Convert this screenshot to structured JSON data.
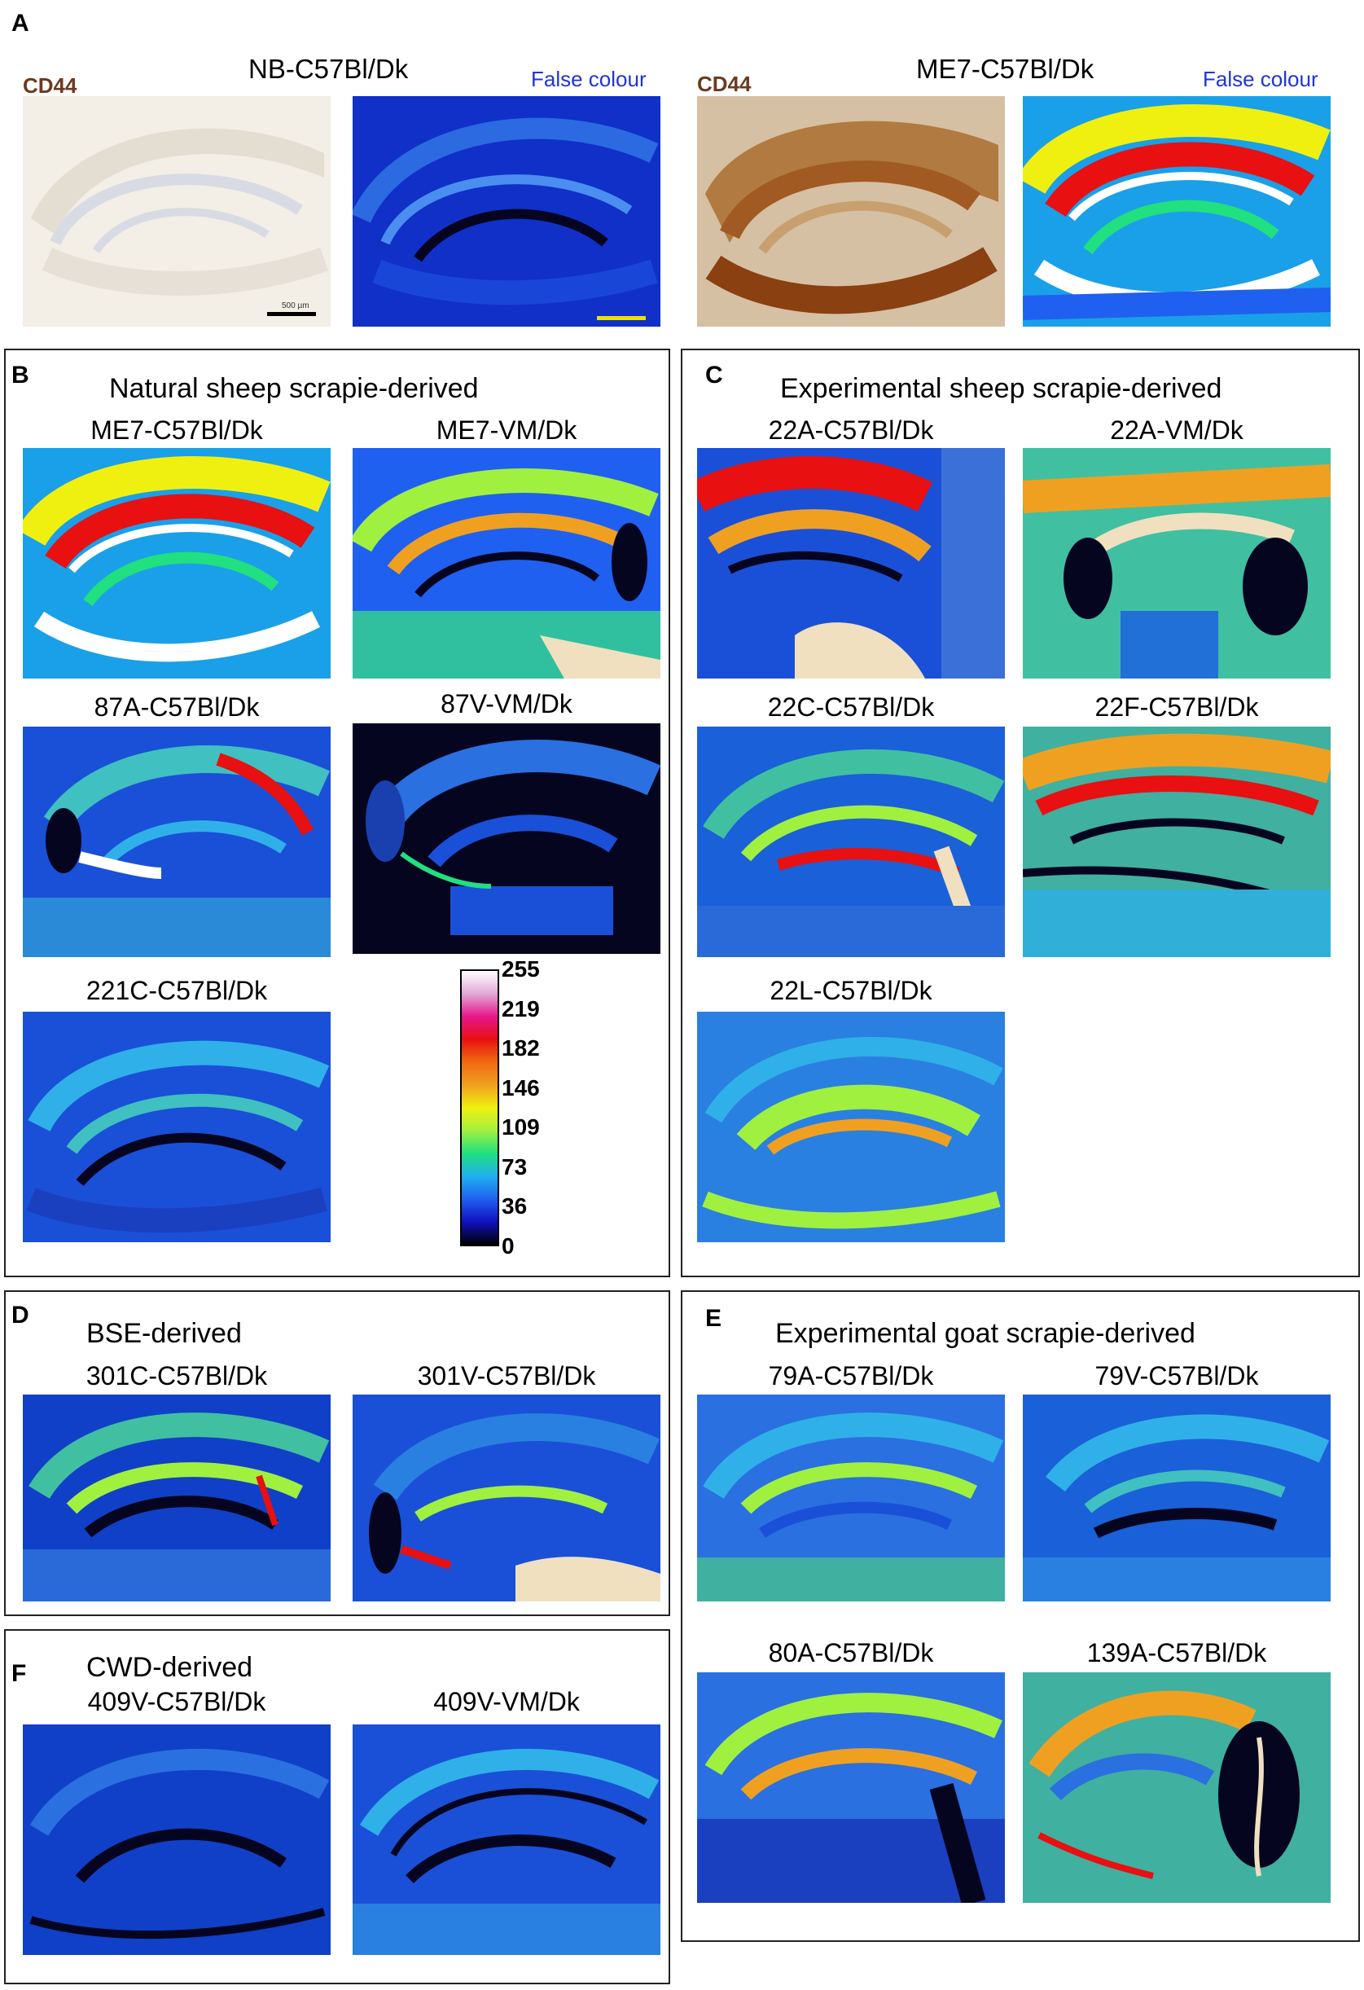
{
  "colors": {
    "cd44_label": "#6b3a1f",
    "false_colour_label": "#1f35d8",
    "scalebar_black": "#000000",
    "scalebar_yellow": "#f0e000"
  },
  "panel_a": {
    "letter": "A",
    "left": {
      "title": "NB-C57Bl/Dk",
      "stain_label": "CD44",
      "false_colour_label": "False colour",
      "scalebar_text": "500 µm"
    },
    "right": {
      "title": "ME7-C57Bl/Dk",
      "stain_label": "CD44",
      "false_colour_label": "False colour"
    }
  },
  "panel_b": {
    "letter": "B",
    "heading": "Natural sheep scrapie-derived",
    "images": [
      "ME7-C57Bl/Dk",
      "ME7-VM/Dk",
      "87A-C57Bl/Dk",
      "87V-VM/Dk",
      "221C-C57Bl/Dk"
    ]
  },
  "panel_c": {
    "letter": "C",
    "heading": "Experimental sheep scrapie-derived",
    "images": [
      "22A-C57Bl/Dk",
      "22A-VM/Dk",
      "22C-C57Bl/Dk",
      "22F-C57Bl/Dk",
      "22L-C57Bl/Dk"
    ]
  },
  "panel_d": {
    "letter": "D",
    "heading": "BSE-derived",
    "images": [
      "301C-C57Bl/Dk",
      "301V-C57Bl/Dk"
    ]
  },
  "panel_e": {
    "letter": "E",
    "heading": "Experimental goat scrapie-derived",
    "images": [
      "79A-C57Bl/Dk",
      "79V-C57Bl/Dk",
      "80A-C57Bl/Dk",
      "139A-C57Bl/Dk"
    ]
  },
  "panel_f": {
    "letter": "F",
    "heading": "CWD-derived",
    "images": [
      "409V-C57Bl/Dk",
      "409V-VM/Dk"
    ]
  },
  "color_scale": {
    "ticks": [
      "255",
      "219",
      "182",
      "146",
      "109",
      "73",
      "36",
      "0"
    ],
    "stops": [
      "#ffffff",
      "#e0a8d8",
      "#e8168c",
      "#e81010",
      "#f06a10",
      "#f0a020",
      "#f0f010",
      "#a0f040",
      "#20e080",
      "#20b0f0",
      "#2060f0",
      "#1010c0",
      "#000000"
    ]
  }
}
